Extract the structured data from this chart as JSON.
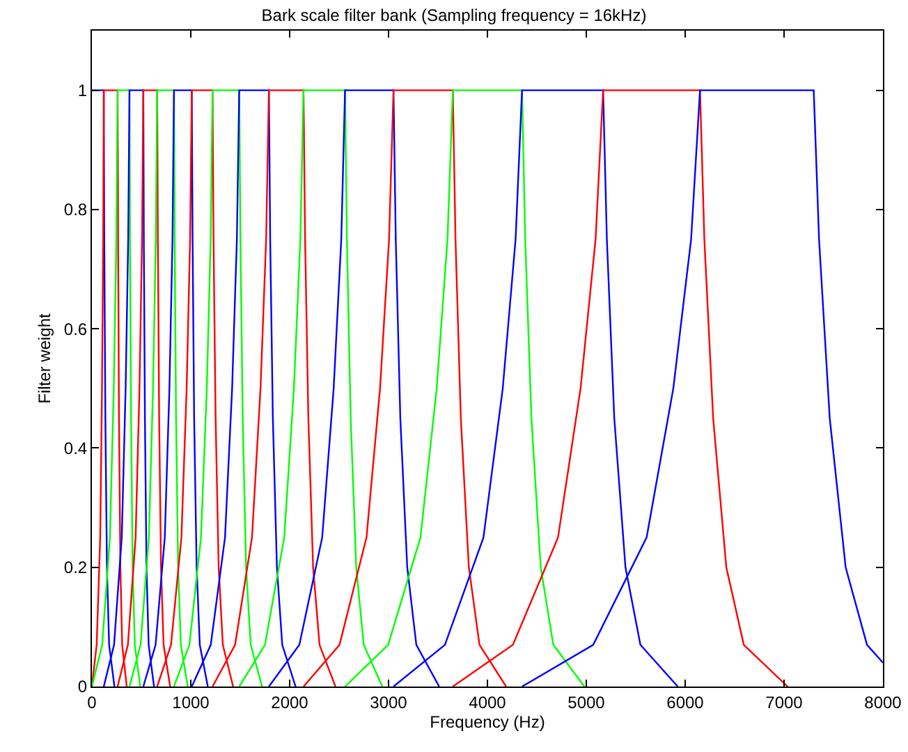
{
  "chart_data": {
    "type": "line",
    "title": "Bark scale filter bank (Sampling frequency = 16kHz)",
    "xlabel": "Frequency (Hz)",
    "ylabel": "Filter weight",
    "xlim": [
      0,
      8000
    ],
    "xticks": [
      0,
      1000,
      2000,
      3000,
      4000,
      5000,
      6000,
      7000,
      8000
    ],
    "ylim": [
      0,
      1.1
    ],
    "yticks": [
      0,
      0.2,
      0.4,
      0.6,
      0.8,
      1
    ],
    "grid": false,
    "line_style": "solid",
    "series": [
      {
        "color": "#0000ff",
        "x": [
          0,
          120,
          125,
          136,
          152,
          174,
          228
        ],
        "values": [
          1,
          1,
          0.75,
          0.45,
          0.2,
          0.07,
          0
        ]
      },
      {
        "color": "#ff0000",
        "x": [
          0,
          48,
          84,
          102,
          114,
          120,
          260,
          265,
          274,
          288,
          306,
          352
        ],
        "values": [
          0,
          0.07,
          0.25,
          0.5,
          0.75,
          1,
          1,
          0.75,
          0.45,
          0.2,
          0.07,
          0
        ]
      },
      {
        "color": "#00ff00",
        "x": [
          0,
          104,
          182,
          221,
          247,
          260,
          380,
          385,
          396,
          412,
          434,
          488
        ],
        "values": [
          0,
          0.07,
          0.25,
          0.5,
          0.75,
          1,
          1,
          0.75,
          0.45,
          0.2,
          0.07,
          0
        ]
      },
      {
        "color": "#0000ff",
        "x": [
          120,
          224,
          302,
          341,
          367,
          380,
          520,
          525,
          536,
          552,
          574,
          628
        ],
        "values": [
          0,
          0.07,
          0.25,
          0.5,
          0.75,
          1,
          1,
          0.75,
          0.45,
          0.2,
          0.07,
          0
        ]
      },
      {
        "color": "#ff0000",
        "x": [
          260,
          364,
          442,
          481,
          507,
          520,
          660,
          667,
          680,
          699,
          725,
          791
        ],
        "values": [
          0,
          0.07,
          0.25,
          0.5,
          0.75,
          1,
          1,
          0.75,
          0.45,
          0.2,
          0.07,
          0
        ]
      },
      {
        "color": "#00ff00",
        "x": [
          380,
          492,
          576,
          618,
          646,
          660,
          830,
          837,
          851,
          872,
          899,
          969
        ],
        "values": [
          0,
          0.07,
          0.25,
          0.5,
          0.75,
          1,
          1,
          0.75,
          0.45,
          0.2,
          0.07,
          0
        ]
      },
      {
        "color": "#0000ff",
        "x": [
          520,
          644,
          737,
          784,
          815,
          830,
          1010,
          1018,
          1034,
          1059,
          1091,
          1172
        ],
        "values": [
          0,
          0.07,
          0.25,
          0.5,
          0.75,
          1,
          1,
          0.75,
          0.45,
          0.2,
          0.07,
          0
        ]
      },
      {
        "color": "#ff0000",
        "x": [
          660,
          800,
          905,
          958,
          993,
          1010,
          1220,
          1230,
          1251,
          1282,
          1324,
          1428
        ],
        "values": [
          0,
          0.07,
          0.25,
          0.5,
          0.75,
          1,
          1,
          0.75,
          0.45,
          0.2,
          0.07,
          0
        ]
      },
      {
        "color": "#00ff00",
        "x": [
          830,
          986,
          1103,
          1162,
          1201,
          1220,
          1490,
          1502,
          1525,
          1559,
          1606,
          1721
        ],
        "values": [
          0,
          0.07,
          0.25,
          0.5,
          0.75,
          1,
          1,
          0.75,
          0.45,
          0.2,
          0.07,
          0
        ]
      },
      {
        "color": "#0000ff",
        "x": [
          1010,
          1202,
          1346,
          1418,
          1466,
          1490,
          1790,
          1803,
          1830,
          1871,
          1925,
          2060
        ],
        "values": [
          0,
          0.07,
          0.25,
          0.5,
          0.75,
          1,
          1,
          0.75,
          0.45,
          0.2,
          0.07,
          0
        ]
      },
      {
        "color": "#ff0000",
        "x": [
          1220,
          1448,
          1619,
          1705,
          1762,
          1790,
          2140,
          2156,
          2189,
          2237,
          2302,
          2463
        ],
        "values": [
          0,
          0.07,
          0.25,
          0.5,
          0.75,
          1,
          1,
          0.75,
          0.45,
          0.2,
          0.07,
          0
        ]
      },
      {
        "color": "#00ff00",
        "x": [
          1490,
          1750,
          1945,
          2043,
          2108,
          2140,
          2560,
          2579,
          2617,
          2673,
          2749,
          2937
        ],
        "values": [
          0,
          0.07,
          0.25,
          0.5,
          0.75,
          1,
          1,
          0.75,
          0.45,
          0.2,
          0.07,
          0
        ]
      },
      {
        "color": "#0000ff",
        "x": [
          1790,
          2098,
          2329,
          2445,
          2522,
          2560,
          3050,
          3073,
          3119,
          3189,
          3281,
          3512
        ],
        "values": [
          0,
          0.07,
          0.25,
          0.5,
          0.75,
          1,
          1,
          0.75,
          0.45,
          0.2,
          0.07,
          0
        ]
      },
      {
        "color": "#ff0000",
        "x": [
          2140,
          2504,
          2777,
          2914,
          3005,
          3050,
          3650,
          3677,
          3731,
          3812,
          3920,
          4189
        ],
        "values": [
          0,
          0.07,
          0.25,
          0.5,
          0.75,
          1,
          1,
          0.75,
          0.45,
          0.2,
          0.07,
          0
        ]
      },
      {
        "color": "#00ff00",
        "x": [
          2560,
          2996,
          3323,
          3487,
          3596,
          3650,
          4350,
          4382,
          4445,
          4539,
          4666,
          4981
        ],
        "values": [
          0,
          0.07,
          0.25,
          0.5,
          0.75,
          1,
          1,
          0.75,
          0.45,
          0.2,
          0.07,
          0
        ]
      },
      {
        "color": "#0000ff",
        "x": [
          3050,
          3570,
          3960,
          4155,
          4285,
          4350,
          5170,
          5208,
          5283,
          5396,
          5547,
          5925
        ],
        "values": [
          0,
          0.07,
          0.25,
          0.5,
          0.75,
          1,
          1,
          0.75,
          0.45,
          0.2,
          0.07,
          0
        ]
      },
      {
        "color": "#ff0000",
        "x": [
          3650,
          4258,
          4714,
          4942,
          5094,
          5170,
          6150,
          6194,
          6283,
          6416,
          6593,
          7036
        ],
        "values": [
          0,
          0.07,
          0.25,
          0.5,
          0.75,
          1,
          1,
          0.75,
          0.45,
          0.2,
          0.07,
          0
        ]
      },
      {
        "color": "#0000ff",
        "x": [
          4350,
          5070,
          5610,
          5880,
          6060,
          6150,
          7300,
          7354,
          7462,
          7623,
          7839,
          8000
        ],
        "values": [
          0,
          0.07,
          0.25,
          0.5,
          0.75,
          1,
          1,
          0.75,
          0.45,
          0.2,
          0.07,
          0.04
        ]
      }
    ]
  }
}
